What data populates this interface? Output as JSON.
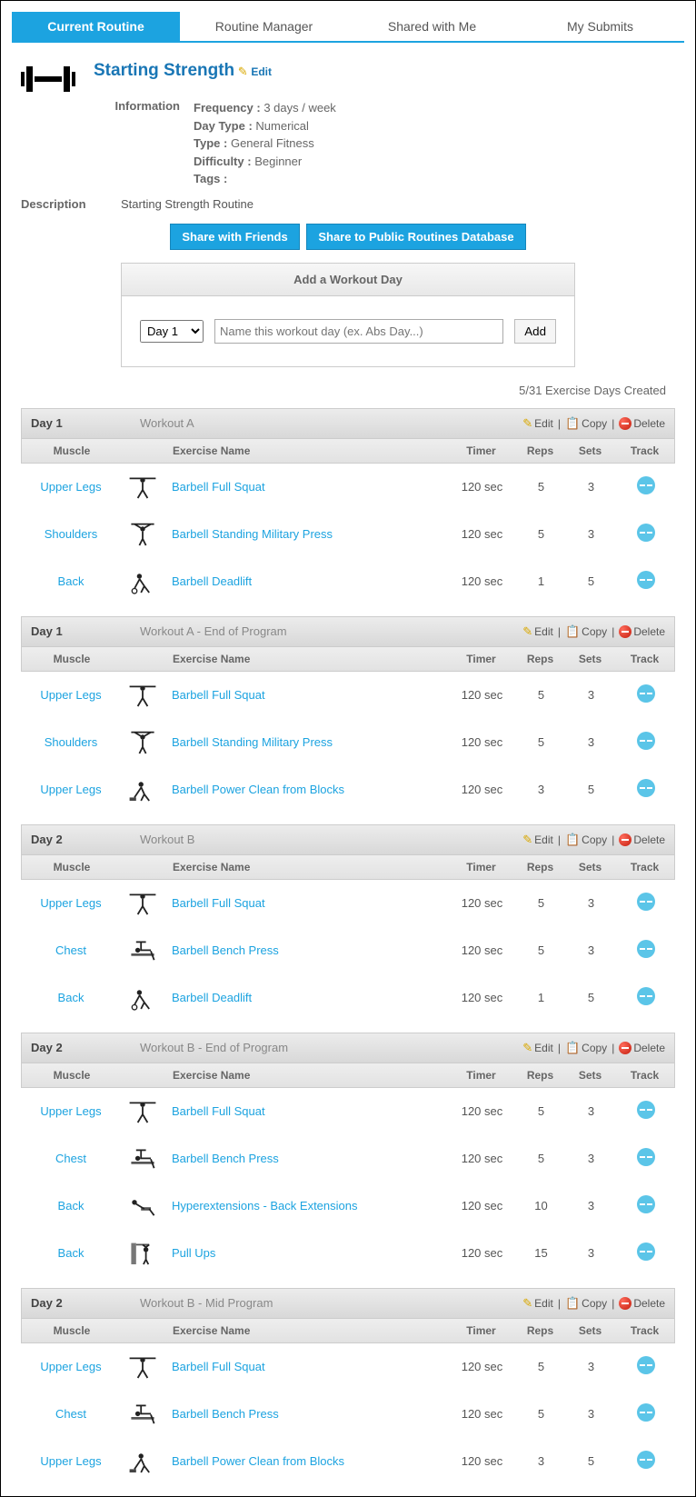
{
  "tabs": [
    {
      "label": "Current Routine",
      "active": true
    },
    {
      "label": "Routine Manager",
      "active": false
    },
    {
      "label": "Shared with Me",
      "active": false
    },
    {
      "label": "My Submits",
      "active": false
    }
  ],
  "routine": {
    "title": "Starting Strength",
    "edit_label": "Edit",
    "info_label": "Information",
    "frequency_label": "Frequency :",
    "frequency_value": "3 days / week",
    "daytype_label": "Day Type :",
    "daytype_value": "Numerical",
    "type_label": "Type :",
    "type_value": "General Fitness",
    "difficulty_label": "Difficulty :",
    "difficulty_value": "Beginner",
    "tags_label": "Tags :",
    "tags_value": "",
    "desc_label": "Description",
    "desc_value": "Starting Strength Routine"
  },
  "buttons": {
    "share_friends": "Share with Friends",
    "share_public": "Share to Public Routines Database"
  },
  "add_day": {
    "header": "Add a Workout Day",
    "day_select": "Day 1",
    "placeholder": "Name this workout day (ex. Abs Day...)",
    "add_btn": "Add"
  },
  "days_count": "5/31 Exercise Days Created",
  "columns": {
    "muscle": "Muscle",
    "exercise": "Exercise Name",
    "timer": "Timer",
    "reps": "Reps",
    "sets": "Sets",
    "track": "Track"
  },
  "actions": {
    "edit": "Edit",
    "copy": "Copy",
    "delete": "Delete"
  },
  "days": [
    {
      "day": "Day 1",
      "name": "Workout A",
      "exercises": [
        {
          "muscle": "Upper Legs",
          "name": "Barbell Full Squat",
          "timer": "120 sec",
          "reps": "5",
          "sets": "3",
          "pose": "squat"
        },
        {
          "muscle": "Shoulders",
          "name": "Barbell Standing Military Press",
          "timer": "120 sec",
          "reps": "5",
          "sets": "3",
          "pose": "press"
        },
        {
          "muscle": "Back",
          "name": "Barbell Deadlift",
          "timer": "120 sec",
          "reps": "1",
          "sets": "5",
          "pose": "deadlift"
        }
      ]
    },
    {
      "day": "Day 1",
      "name": "Workout A - End of Program",
      "exercises": [
        {
          "muscle": "Upper Legs",
          "name": "Barbell Full Squat",
          "timer": "120 sec",
          "reps": "5",
          "sets": "3",
          "pose": "squat"
        },
        {
          "muscle": "Shoulders",
          "name": "Barbell Standing Military Press",
          "timer": "120 sec",
          "reps": "5",
          "sets": "3",
          "pose": "press"
        },
        {
          "muscle": "Upper Legs",
          "name": "Barbell Power Clean from Blocks",
          "timer": "120 sec",
          "reps": "3",
          "sets": "5",
          "pose": "clean"
        }
      ]
    },
    {
      "day": "Day 2",
      "name": "Workout B",
      "exercises": [
        {
          "muscle": "Upper Legs",
          "name": "Barbell Full Squat",
          "timer": "120 sec",
          "reps": "5",
          "sets": "3",
          "pose": "squat"
        },
        {
          "muscle": "Chest",
          "name": "Barbell Bench Press",
          "timer": "120 sec",
          "reps": "5",
          "sets": "3",
          "pose": "bench"
        },
        {
          "muscle": "Back",
          "name": "Barbell Deadlift",
          "timer": "120 sec",
          "reps": "1",
          "sets": "5",
          "pose": "deadlift"
        }
      ]
    },
    {
      "day": "Day 2",
      "name": "Workout B - End of Program",
      "exercises": [
        {
          "muscle": "Upper Legs",
          "name": "Barbell Full Squat",
          "timer": "120 sec",
          "reps": "5",
          "sets": "3",
          "pose": "squat"
        },
        {
          "muscle": "Chest",
          "name": "Barbell Bench Press",
          "timer": "120 sec",
          "reps": "5",
          "sets": "3",
          "pose": "bench"
        },
        {
          "muscle": "Back",
          "name": "Hyperextensions - Back Extensions",
          "timer": "120 sec",
          "reps": "10",
          "sets": "3",
          "pose": "hyper"
        },
        {
          "muscle": "Back",
          "name": "Pull Ups",
          "timer": "120 sec",
          "reps": "15",
          "sets": "3",
          "pose": "pullup"
        }
      ]
    },
    {
      "day": "Day 2",
      "name": "Workout B - Mid Program",
      "exercises": [
        {
          "muscle": "Upper Legs",
          "name": "Barbell Full Squat",
          "timer": "120 sec",
          "reps": "5",
          "sets": "3",
          "pose": "squat"
        },
        {
          "muscle": "Chest",
          "name": "Barbell Bench Press",
          "timer": "120 sec",
          "reps": "5",
          "sets": "3",
          "pose": "bench"
        },
        {
          "muscle": "Upper Legs",
          "name": "Barbell Power Clean from Blocks",
          "timer": "120 sec",
          "reps": "3",
          "sets": "5",
          "pose": "clean"
        }
      ]
    }
  ],
  "colors": {
    "accent": "#1ca3e0",
    "link": "#1ca3e0",
    "title": "#1976b5",
    "header_bg_top": "#ececec",
    "header_bg_bottom": "#d8d8d8"
  }
}
